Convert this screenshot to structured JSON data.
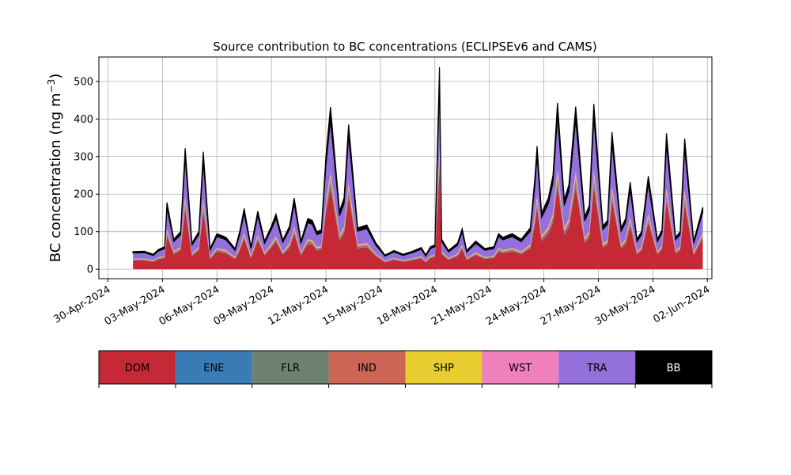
{
  "chart_data": {
    "type": "area",
    "title": "Source contribution to BC concentrations (ECLIPSEv6 and CAMS)",
    "ylabel_base": "BC concentration (ng m",
    "ylabel_sup": "−3",
    "ylabel_close": ")",
    "xlabel": "",
    "stacked": true,
    "grid": true,
    "x_unit": "date (UTC)",
    "xlim": [
      "2024-04-29T12:00",
      "2024-06-02T06:00"
    ],
    "ylim": [
      -25,
      565
    ],
    "yticks": [
      0,
      100,
      200,
      300,
      400,
      500
    ],
    "xticks": [
      "2024-04-30",
      "2024-05-03",
      "2024-05-06",
      "2024-05-09",
      "2024-05-12",
      "2024-05-15",
      "2024-05-18",
      "2024-05-21",
      "2024-05-24",
      "2024-05-27",
      "2024-05-30",
      "2024-06-02"
    ],
    "xtick_labels": [
      "30-Apr-2024",
      "03-May-2024",
      "06-May-2024",
      "09-May-2024",
      "12-May-2024",
      "15-May-2024",
      "18-May-2024",
      "21-May-2024",
      "24-May-2024",
      "27-May-2024",
      "30-May-2024",
      "02-Jun-2024"
    ],
    "total_points": [
      [
        "2024-05-01T09:00",
        47
      ],
      [
        "2024-05-02T00:00",
        48
      ],
      [
        "2024-05-02T12:00",
        40
      ],
      [
        "2024-05-02T18:00",
        52
      ],
      [
        "2024-05-03T03:00",
        60
      ],
      [
        "2024-05-03T06:00",
        178
      ],
      [
        "2024-05-03T15:00",
        80
      ],
      [
        "2024-05-04T00:00",
        100
      ],
      [
        "2024-05-04T06:00",
        322
      ],
      [
        "2024-05-04T15:00",
        70
      ],
      [
        "2024-05-05T00:00",
        100
      ],
      [
        "2024-05-05T06:00",
        313
      ],
      [
        "2024-05-05T15:00",
        55
      ],
      [
        "2024-05-06T00:00",
        95
      ],
      [
        "2024-05-06T12:00",
        85
      ],
      [
        "2024-05-07T00:00",
        55
      ],
      [
        "2024-05-07T06:00",
        100
      ],
      [
        "2024-05-07T12:00",
        162
      ],
      [
        "2024-05-07T21:00",
        60
      ],
      [
        "2024-05-08T06:00",
        155
      ],
      [
        "2024-05-08T15:00",
        75
      ],
      [
        "2024-05-09T00:00",
        115
      ],
      [
        "2024-05-09T06:00",
        147
      ],
      [
        "2024-05-09T15:00",
        78
      ],
      [
        "2024-05-10T00:00",
        115
      ],
      [
        "2024-05-10T06:00",
        190
      ],
      [
        "2024-05-10T15:00",
        75
      ],
      [
        "2024-05-11T00:00",
        135
      ],
      [
        "2024-05-11T06:00",
        130
      ],
      [
        "2024-05-11T12:00",
        100
      ],
      [
        "2024-05-11T18:00",
        105
      ],
      [
        "2024-05-12T00:00",
        300
      ],
      [
        "2024-05-12T06:00",
        432
      ],
      [
        "2024-05-12T18:00",
        155
      ],
      [
        "2024-05-13T00:00",
        190
      ],
      [
        "2024-05-13T06:00",
        385
      ],
      [
        "2024-05-13T18:00",
        110
      ],
      [
        "2024-05-14T06:00",
        118
      ],
      [
        "2024-05-14T18:00",
        70
      ],
      [
        "2024-05-15T06:00",
        38
      ],
      [
        "2024-05-15T18:00",
        50
      ],
      [
        "2024-05-16T06:00",
        40
      ],
      [
        "2024-05-16T18:00",
        48
      ],
      [
        "2024-05-17T06:00",
        58
      ],
      [
        "2024-05-17T12:00",
        38
      ],
      [
        "2024-05-17T18:00",
        60
      ],
      [
        "2024-05-18T00:00",
        65
      ],
      [
        "2024-05-18T06:00",
        538
      ],
      [
        "2024-05-18T09:00",
        80
      ],
      [
        "2024-05-18T18:00",
        50
      ],
      [
        "2024-05-19T06:00",
        70
      ],
      [
        "2024-05-19T12:00",
        108
      ],
      [
        "2024-05-19T18:00",
        50
      ],
      [
        "2024-05-20T06:00",
        75
      ],
      [
        "2024-05-20T18:00",
        55
      ],
      [
        "2024-05-21T06:00",
        60
      ],
      [
        "2024-05-21T12:00",
        95
      ],
      [
        "2024-05-21T18:00",
        85
      ],
      [
        "2024-05-22T06:00",
        95
      ],
      [
        "2024-05-22T18:00",
        80
      ],
      [
        "2024-05-23T06:00",
        110
      ],
      [
        "2024-05-23T12:00",
        240
      ],
      [
        "2024-05-23T15:00",
        328
      ],
      [
        "2024-05-23T21:00",
        150
      ],
      [
        "2024-05-24T06:00",
        190
      ],
      [
        "2024-05-24T12:00",
        250
      ],
      [
        "2024-05-24T18:00",
        443
      ],
      [
        "2024-05-25T03:00",
        185
      ],
      [
        "2024-05-25T09:00",
        225
      ],
      [
        "2024-05-25T18:00",
        433
      ],
      [
        "2024-05-26T06:00",
        140
      ],
      [
        "2024-05-26T12:00",
        170
      ],
      [
        "2024-05-26T18:00",
        440
      ],
      [
        "2024-05-27T06:00",
        115
      ],
      [
        "2024-05-27T12:00",
        130
      ],
      [
        "2024-05-27T18:00",
        365
      ],
      [
        "2024-05-28T06:00",
        110
      ],
      [
        "2024-05-28T12:00",
        135
      ],
      [
        "2024-05-28T18:00",
        232
      ],
      [
        "2024-05-29T03:00",
        80
      ],
      [
        "2024-05-29T09:00",
        100
      ],
      [
        "2024-05-29T18:00",
        248
      ],
      [
        "2024-05-30T06:00",
        80
      ],
      [
        "2024-05-30T12:00",
        105
      ],
      [
        "2024-05-30T18:00",
        362
      ],
      [
        "2024-05-31T06:00",
        85
      ],
      [
        "2024-05-31T12:00",
        100
      ],
      [
        "2024-05-31T18:00",
        348
      ],
      [
        "2024-06-01T06:00",
        75
      ],
      [
        "2024-06-01T18:00",
        165
      ]
    ],
    "series": [
      {
        "name": "DOM",
        "color": "#c62936",
        "fraction": 0.5
      },
      {
        "name": "ENE",
        "color": "#3a7ab5",
        "fraction": 0.01
      },
      {
        "name": "FLR",
        "color": "#6e8272",
        "fraction": 0.03
      },
      {
        "name": "IND",
        "color": "#cc6554",
        "fraction": 0.02
      },
      {
        "name": "SHP",
        "color": "#e8cd30",
        "fraction": 0.02
      },
      {
        "name": "WST",
        "color": "#f07fbd",
        "fraction": 0.02
      },
      {
        "name": "TRA",
        "color": "#9370db",
        "fraction": 0.32
      },
      {
        "name": "BB",
        "color": "#000000",
        "fraction": 0.08
      }
    ],
    "legend_placement": "below"
  }
}
